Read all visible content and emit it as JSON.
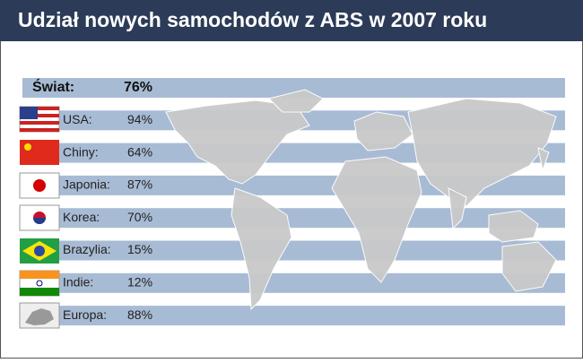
{
  "header": {
    "title": "Udział nowych samochodów z ABS w 2007 roku"
  },
  "world": {
    "label": "Świat:",
    "value": "76%"
  },
  "rows": [
    {
      "label": "USA:",
      "value": "94%"
    },
    {
      "label": "Chiny:",
      "value": "64%"
    },
    {
      "label": "Japonia:",
      "value": "87%"
    },
    {
      "label": "Korea:",
      "value": "70%"
    },
    {
      "label": "Brazylia:",
      "value": "15%"
    },
    {
      "label": "Indie:",
      "value": "12%"
    },
    {
      "label": "Europa:",
      "value": "88%"
    }
  ]
}
